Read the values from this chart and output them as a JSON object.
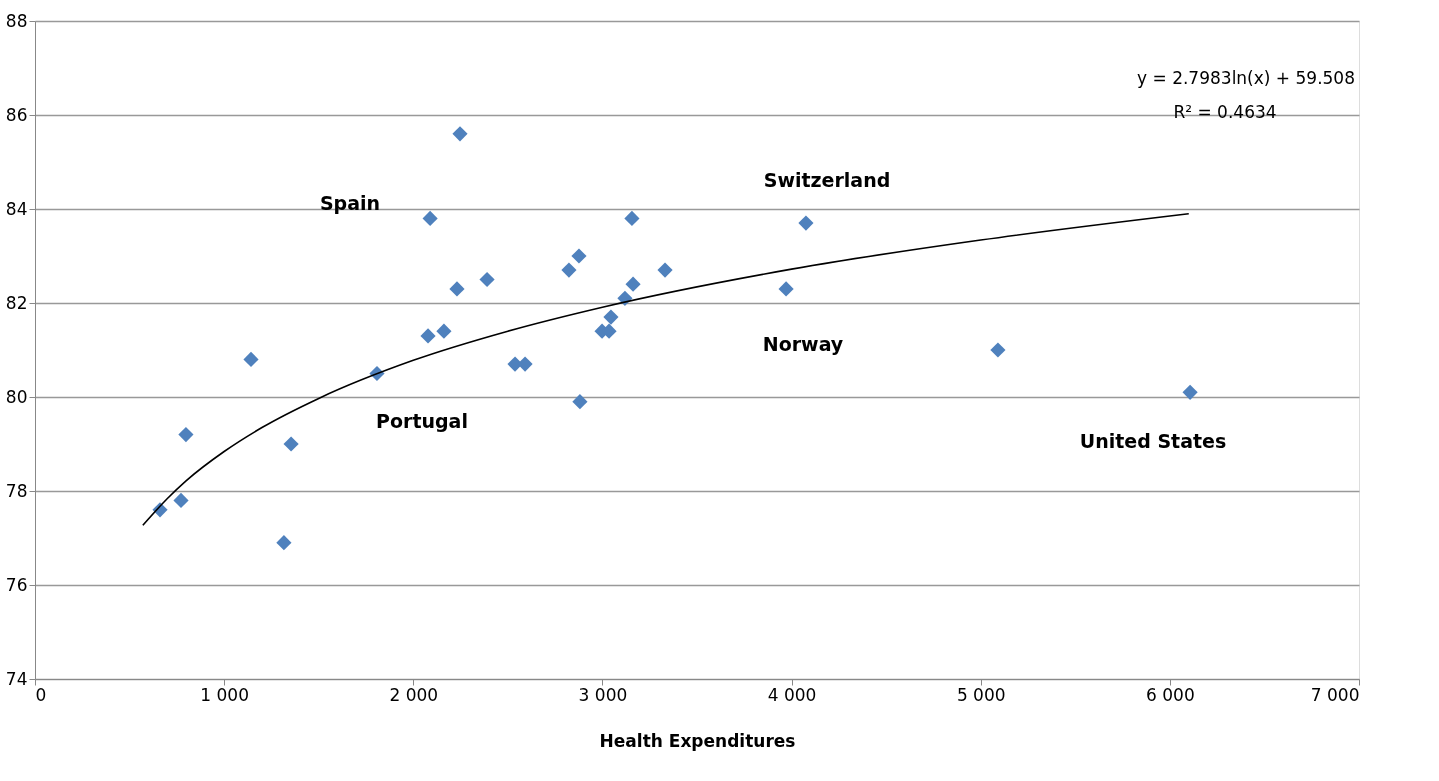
{
  "chart_data": {
    "type": "scatter",
    "xlabel": "Health Expenditures",
    "xlim": [
      0,
      7000
    ],
    "xticks": [
      0,
      {
        "value": 1000,
        "label": "1 000"
      },
      {
        "value": 2000,
        "label": "2 000"
      },
      {
        "value": 3000,
        "label": "3 000"
      },
      {
        "value": 4000,
        "label": "4 000"
      },
      {
        "value": 5000,
        "label": "5 000"
      },
      {
        "value": 6000,
        "label": "6 000"
      },
      {
        "value": 7000,
        "label": "7 000"
      }
    ],
    "ylim": [
      74,
      88
    ],
    "yticks": [
      74,
      76,
      78,
      80,
      82,
      84,
      86,
      88
    ],
    "grid": "y",
    "series": [
      {
        "color": "#4f81bd",
        "marker": "diamond",
        "x": [
          661,
          772,
          798,
          1142,
          1316,
          1354,
          1808,
          2078,
          2089,
          2162,
          2231,
          2247,
          2390,
          2538,
          2591,
          2823,
          2876,
          2881,
          2998,
          3035,
          3045,
          3119,
          3156,
          3162,
          3331,
          3971,
          4076,
          5091,
          6107
        ],
        "values": [
          77.6,
          77.8,
          79.2,
          80.8,
          76.9,
          79.0,
          80.5,
          81.3,
          83.8,
          81.4,
          82.3,
          85.6,
          82.5,
          80.7,
          80.7,
          82.7,
          83.0,
          79.9,
          81.4,
          81.4,
          81.7,
          82.1,
          83.8,
          82.4,
          82.7,
          82.3,
          83.7,
          81.0,
          80.1
        ]
      },
      {
        "type": "line",
        "color": "#000000",
        "line_style": "solid",
        "x": [
          570,
          700,
          800,
          1000,
          1200,
          1500,
          2000,
          2500,
          3000,
          4000,
          5000,
          6100
        ],
        "values": [
          77.27,
          77.84,
          78.22,
          78.84,
          79.35,
          79.97,
          80.78,
          81.4,
          81.91,
          82.72,
          83.34,
          83.9
        ]
      }
    ],
    "annotations": [
      "Spain",
      "Switzerland",
      "Norway",
      "Portugal",
      "United States",
      "y = 2.7983ln(x) + 59.508",
      "R² = 0.4634"
    ]
  }
}
